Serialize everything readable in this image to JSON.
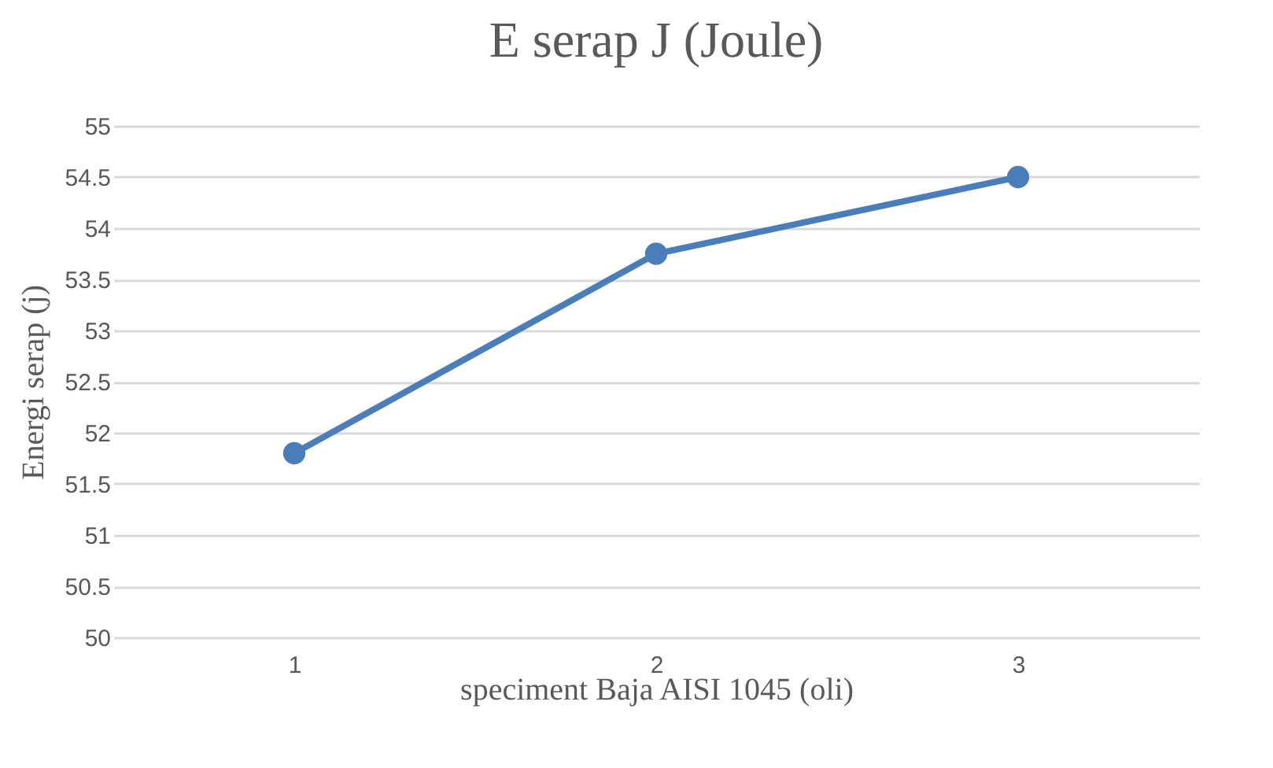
{
  "chart_data": {
    "type": "line",
    "title": "E serap J (Joule)",
    "xlabel": "speciment Baja AISI 1045 (oli)",
    "ylabel": "Energi serap (j)",
    "categories": [
      "1",
      "2",
      "3"
    ],
    "series": [
      {
        "color": "#4a7ebb",
        "values": [
          51.8,
          53.75,
          54.5
        ]
      }
    ],
    "ylim": [
      50,
      55
    ],
    "yticks": [
      50,
      50.5,
      51,
      51.5,
      52,
      52.5,
      53,
      53.5,
      54,
      54.5,
      55
    ],
    "grid": "y",
    "marker": "circle",
    "line_style": "solid"
  }
}
